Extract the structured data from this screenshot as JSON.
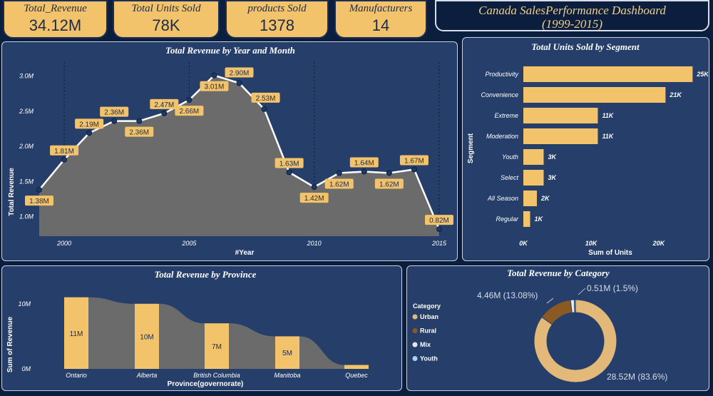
{
  "kpis": [
    {
      "label": "Total_Revenue",
      "value": "34.12M"
    },
    {
      "label": "Total Units Sold",
      "value": "78K"
    },
    {
      "label": "products Sold",
      "value": "1378"
    },
    {
      "label": "Manufacturers",
      "value": "14"
    }
  ],
  "dashboard_title": {
    "line1": "Canada SalesPerformance Dashboard",
    "line2": "(1999-2015)"
  },
  "colors": {
    "bg": "#0b1e3e",
    "panel": "#263f6a",
    "accent": "#f3c36b",
    "area": "#6b6b6b",
    "rural": "#8a5a22",
    "mix": "#e8e8e8",
    "youth": "#a9d3f0"
  },
  "chart_data": [
    {
      "type": "area",
      "title": "Total Revenue by Year and Month",
      "xlabel": "#Year",
      "ylabel": "Total Revenue",
      "xlim": [
        1999,
        2015.2
      ],
      "ylim": [
        0.72,
        3.2
      ],
      "xticks": [
        2000,
        2005,
        2010,
        2015
      ],
      "yticks": [
        {
          "v": 1.0,
          "t": "1.0M"
        },
        {
          "v": 1.5,
          "t": "1.5M"
        },
        {
          "v": 2.0,
          "t": "2.0M"
        },
        {
          "v": 2.5,
          "t": "2.5M"
        },
        {
          "v": 3.0,
          "t": "3.0M"
        }
      ],
      "points": [
        {
          "x": 1999.0,
          "y": 1.38,
          "label": "1.38M",
          "pos": "below"
        },
        {
          "x": 2000.0,
          "y": 1.81,
          "label": "1.81M",
          "pos": "above"
        },
        {
          "x": 2001.0,
          "y": 2.19,
          "label": "2.19M",
          "pos": "above"
        },
        {
          "x": 2002.0,
          "y": 2.36,
          "label": "2.36M",
          "pos": "above"
        },
        {
          "x": 2003.0,
          "y": 2.36,
          "label": "2.36M",
          "pos": "below"
        },
        {
          "x": 2004.0,
          "y": 2.47,
          "label": "2.47M",
          "pos": "above"
        },
        {
          "x": 2005.0,
          "y": 2.66,
          "label": "2.66M",
          "pos": "belowright"
        },
        {
          "x": 2006.0,
          "y": 3.01,
          "label": "3.01M",
          "pos": "below"
        },
        {
          "x": 2007.0,
          "y": 2.9,
          "label": "2.90M",
          "pos": "aboveleft"
        },
        {
          "x": 2008.0,
          "y": 2.53,
          "label": "2.53M",
          "pos": "aboveright"
        },
        {
          "x": 2009.0,
          "y": 1.63,
          "label": "1.63M",
          "pos": "above"
        },
        {
          "x": 2010.0,
          "y": 1.42,
          "label": "1.42M",
          "pos": "below"
        },
        {
          "x": 2011.0,
          "y": 1.62,
          "label": "1.62M",
          "pos": "below"
        },
        {
          "x": 2012.0,
          "y": 1.64,
          "label": "1.64M",
          "pos": "above"
        },
        {
          "x": 2013.0,
          "y": 1.62,
          "label": "1.62M",
          "pos": "below"
        },
        {
          "x": 2014.0,
          "y": 1.67,
          "label": "1.67M",
          "pos": "above"
        },
        {
          "x": 2015.0,
          "y": 0.82,
          "label": "0.82M",
          "pos": "above"
        }
      ]
    },
    {
      "type": "bar",
      "orientation": "horizontal",
      "title": "Total Units Sold by Segment",
      "xlabel": "Sum of Units",
      "ylabel": "Segment",
      "xlim": [
        0,
        25800
      ],
      "xticks": [
        {
          "v": 0,
          "t": "0K"
        },
        {
          "v": 10000,
          "t": "10K"
        },
        {
          "v": 20000,
          "t": "20K"
        }
      ],
      "categories": [
        "Productivity",
        "Convenience",
        "Extreme",
        "Moderation",
        "Youth",
        "Select",
        "All Season",
        "Regular"
      ],
      "values": [
        25000,
        21000,
        11000,
        11000,
        3000,
        3000,
        2000,
        1000
      ],
      "labels": [
        "25K",
        "21K",
        "11K",
        "11K",
        "3K",
        "3K",
        "2K",
        "1K"
      ]
    },
    {
      "type": "bar",
      "title": "Total Revenue by Province",
      "xlabel": "Province(governorate)",
      "ylabel": "Sum of Revenue",
      "ylim": [
        0,
        12.5
      ],
      "yticks": [
        {
          "v": 0,
          "t": "0M"
        },
        {
          "v": 10,
          "t": "10M"
        }
      ],
      "categories": [
        "Ontario",
        "Alberta",
        "British Columbia",
        "Manitoba",
        "Quebec"
      ],
      "values": [
        11,
        10,
        7,
        5,
        0.6
      ],
      "labels": [
        "11M",
        "10M",
        "7M",
        "5M",
        ""
      ]
    },
    {
      "type": "pie",
      "title": "Total Revenue by Category",
      "legend_title": "Category",
      "categories": [
        "Urban",
        "Rural",
        "Mix",
        "Youth"
      ],
      "values": [
        28.52,
        4.46,
        0.51,
        0.14
      ],
      "slice_labels": [
        "28.52M (83.6%)",
        "4.46M (13.08%)",
        "0.51M (1.5%)",
        ""
      ],
      "colors": [
        "#e3b979",
        "#8a5a22",
        "#e8e8e8",
        "#a9d3f0"
      ]
    }
  ]
}
